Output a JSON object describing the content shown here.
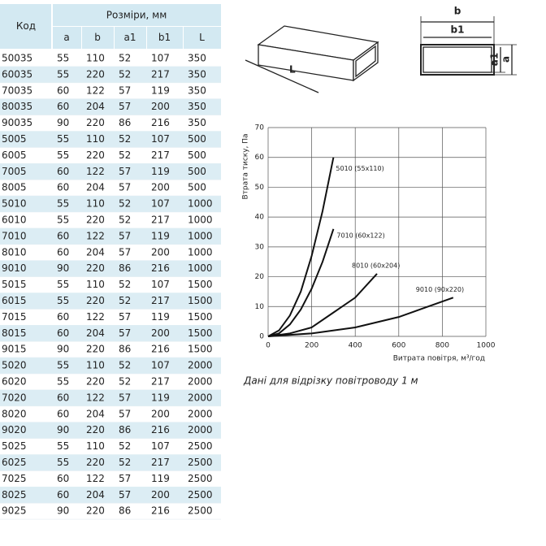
{
  "table": {
    "header": {
      "code": "Код",
      "dims": "Розміри, мм",
      "cols": [
        "a",
        "b",
        "a1",
        "b1",
        "L"
      ]
    },
    "rows": [
      [
        "50035",
        55,
        110,
        52,
        107,
        350
      ],
      [
        "60035",
        55,
        220,
        52,
        217,
        350
      ],
      [
        "70035",
        60,
        122,
        57,
        119,
        350
      ],
      [
        "80035",
        60,
        204,
        57,
        200,
        350
      ],
      [
        "90035",
        90,
        220,
        86,
        216,
        350
      ],
      [
        "5005",
        55,
        110,
        52,
        107,
        500
      ],
      [
        "6005",
        55,
        220,
        52,
        217,
        500
      ],
      [
        "7005",
        60,
        122,
        57,
        119,
        500
      ],
      [
        "8005",
        60,
        204,
        57,
        200,
        500
      ],
      [
        "5010",
        55,
        110,
        52,
        107,
        1000
      ],
      [
        "6010",
        55,
        220,
        52,
        217,
        1000
      ],
      [
        "7010",
        60,
        122,
        57,
        119,
        1000
      ],
      [
        "8010",
        60,
        204,
        57,
        200,
        1000
      ],
      [
        "9010",
        90,
        220,
        86,
        216,
        1000
      ],
      [
        "5015",
        55,
        110,
        52,
        107,
        1500
      ],
      [
        "6015",
        55,
        220,
        52,
        217,
        1500
      ],
      [
        "7015",
        60,
        122,
        57,
        119,
        1500
      ],
      [
        "8015",
        60,
        204,
        57,
        200,
        1500
      ],
      [
        "9015",
        90,
        220,
        86,
        216,
        1500
      ],
      [
        "5020",
        55,
        110,
        52,
        107,
        2000
      ],
      [
        "6020",
        55,
        220,
        52,
        217,
        2000
      ],
      [
        "7020",
        60,
        122,
        57,
        119,
        2000
      ],
      [
        "8020",
        60,
        204,
        57,
        200,
        2000
      ],
      [
        "9020",
        90,
        220,
        86,
        216,
        2000
      ],
      [
        "5025",
        55,
        110,
        52,
        107,
        2500
      ],
      [
        "6025",
        55,
        220,
        52,
        217,
        2500
      ],
      [
        "7025",
        60,
        122,
        57,
        119,
        2500
      ],
      [
        "8025",
        60,
        204,
        57,
        200,
        2500
      ],
      [
        "9025",
        90,
        220,
        86,
        216,
        2500
      ]
    ]
  },
  "diagram": {
    "length": "L",
    "b": "b",
    "b1": "b1",
    "a1": "a1",
    "a": "a"
  },
  "chart_data": {
    "type": "line",
    "x_label": "Витрата повітря, м³/год",
    "y_label": "Втрата тиску, Па",
    "xlim": [
      0,
      1000
    ],
    "ylim": [
      0,
      70
    ],
    "xticks": [
      0,
      200,
      400,
      600,
      800,
      1000
    ],
    "yticks": [
      0,
      10,
      20,
      30,
      40,
      50,
      60,
      70
    ],
    "grid": true,
    "series": [
      {
        "name": "5010 (55x110)",
        "color": "#111111",
        "x": [
          0,
          50,
          100,
          150,
          200,
          250,
          300
        ],
        "values": [
          0,
          2,
          7,
          15,
          27,
          42,
          60
        ]
      },
      {
        "name": "7010 (60x122)",
        "color": "#111111",
        "x": [
          0,
          50,
          100,
          150,
          200,
          250,
          300
        ],
        "values": [
          0,
          1,
          4,
          9,
          16,
          25,
          36
        ]
      },
      {
        "name": "8010 (60x204)",
        "color": "#111111",
        "x": [
          0,
          100,
          200,
          300,
          400,
          500
        ],
        "values": [
          0,
          1,
          3,
          8,
          13,
          21
        ]
      },
      {
        "name": "9010 (90x220)",
        "color": "#111111",
        "x": [
          0,
          200,
          400,
          600,
          850
        ],
        "values": [
          0,
          1,
          3,
          6.5,
          13
        ]
      }
    ]
  },
  "caption": "Дані для відрізку повітроводу 1 м"
}
